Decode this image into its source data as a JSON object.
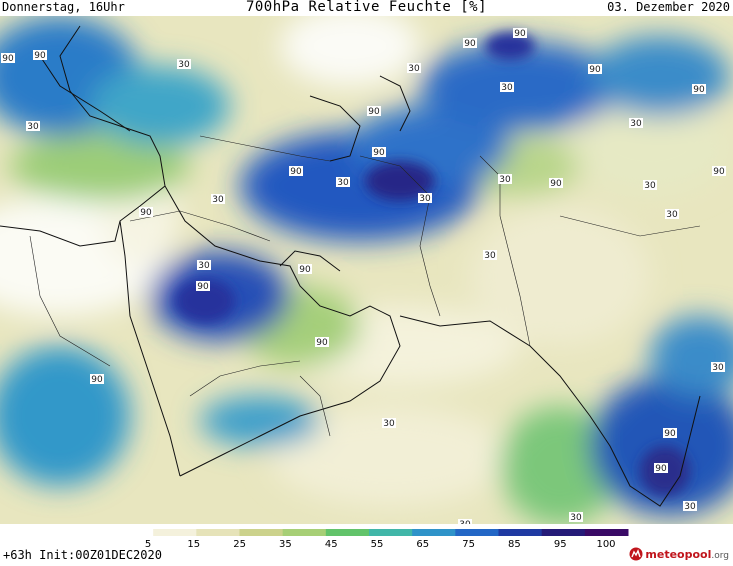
{
  "header": {
    "left": "Donnerstag, 16Uhr",
    "title": "700hPa Relative Feuchte [%]",
    "right": "03. Dezember 2020"
  },
  "footer": {
    "left": "+63h Init:00Z01DEC2020",
    "logo_main": "meteopool",
    "logo_suffix": ".org"
  },
  "colorbar": {
    "ticks": [
      "5",
      "15",
      "25",
      "35",
      "45",
      "55",
      "65",
      "75",
      "85",
      "95",
      "100"
    ],
    "colors": [
      "#ffffff",
      "#f4f1dc",
      "#e6e3b9",
      "#ccd28c",
      "#a7cf76",
      "#62c36a",
      "#41b6a8",
      "#2f93c9",
      "#2367c6",
      "#1f3aa2",
      "#251b78",
      "#3a0a66"
    ]
  },
  "map": {
    "contour_labels": [
      "90",
      "90",
      "30",
      "30",
      "90",
      "90",
      "90",
      "90",
      "30",
      "30",
      "30",
      "90",
      "90",
      "90",
      "30",
      "30",
      "30",
      "90",
      "30",
      "90",
      "90",
      "30",
      "30",
      "30",
      "30",
      "90",
      "90",
      "90",
      "90",
      "30",
      "30",
      "30",
      "30",
      "90",
      "90",
      "30"
    ]
  }
}
